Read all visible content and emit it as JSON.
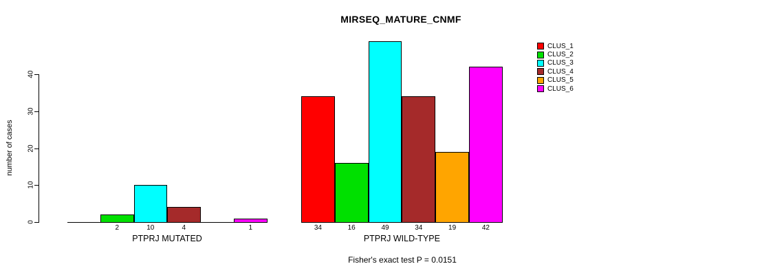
{
  "chart_data": {
    "type": "bar",
    "title": "MIRSEQ_MATURE_CNMF",
    "ylabel": "number of cases",
    "yticks": [
      0,
      10,
      20,
      30,
      40
    ],
    "ylim": [
      0,
      49
    ],
    "grid": false,
    "legend_position": "right",
    "legend": [
      {
        "label": "CLUS_1",
        "color": "#FF0000"
      },
      {
        "label": "CLUS_2",
        "color": "#00E000"
      },
      {
        "label": "CLUS_3",
        "color": "#00FFFF"
      },
      {
        "label": "CLUS_4",
        "color": "#A52A2A"
      },
      {
        "label": "CLUS_5",
        "color": "#FFA500"
      },
      {
        "label": "CLUS_6",
        "color": "#FF00FF"
      }
    ],
    "groups": [
      {
        "label": "PTPRJ MUTATED",
        "values": [
          0,
          2,
          10,
          4,
          0,
          1
        ],
        "bar_labels": [
          "",
          "2",
          "10",
          "4",
          "",
          "1"
        ]
      },
      {
        "label": "PTPRJ WILD-TYPE",
        "values": [
          34,
          16,
          49,
          34,
          19,
          42
        ],
        "bar_labels": [
          "34",
          "16",
          "49",
          "34",
          "19",
          "42"
        ]
      }
    ],
    "annotation": "Fisher's exact test P = 0.0151"
  }
}
